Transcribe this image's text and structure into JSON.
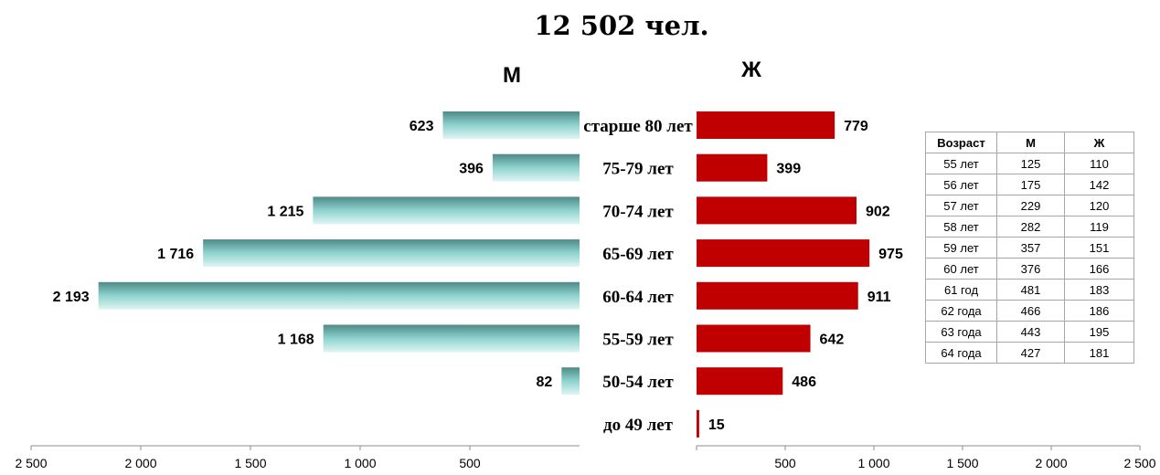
{
  "chart_data": {
    "type": "bar",
    "orientation": "horizontal",
    "title": "12 502 чел.",
    "categories": [
      "старше 80 лет",
      "75-79 лет",
      "70-74 лет",
      "65-69 лет",
      "60-64 лет",
      "55-59 лет",
      "50-54 лет",
      "до 49 лет"
    ],
    "series": [
      {
        "name": "М",
        "values": [
          623,
          396,
          1215,
          1716,
          2193,
          1168,
          82,
          0
        ],
        "labels": [
          "623",
          "396",
          "1 215",
          "1 716",
          "2 193",
          "1 168",
          "82",
          ""
        ],
        "color": "#7fc7c4"
      },
      {
        "name": "Ж",
        "values": [
          779,
          399,
          902,
          975,
          911,
          642,
          486,
          15
        ],
        "labels": [
          "779",
          "399",
          "902",
          "975",
          "911",
          "642",
          "486",
          "15"
        ],
        "color": "#c00000"
      }
    ],
    "xlim": [
      0,
      2500
    ],
    "left_ticks": [
      "2 500",
      "2 000",
      "1 500",
      "1 000",
      "500"
    ],
    "right_ticks": [
      "500",
      "1 000",
      "1 500",
      "2 000",
      "2 500"
    ],
    "grid": false,
    "legend": "none"
  },
  "table": {
    "headers": [
      "Возраст",
      "М",
      "Ж"
    ],
    "rows": [
      [
        "55 лет",
        "125",
        "110"
      ],
      [
        "56 лет",
        "175",
        "142"
      ],
      [
        "57 лет",
        "229",
        "120"
      ],
      [
        "58 лет",
        "282",
        "119"
      ],
      [
        "59 лет",
        "357",
        "151"
      ],
      [
        "60 лет",
        "376",
        "166"
      ],
      [
        "61 год",
        "481",
        "183"
      ],
      [
        "62 года",
        "466",
        "186"
      ],
      [
        "63 года",
        "443",
        "195"
      ],
      [
        "64 года",
        "427",
        "181"
      ]
    ]
  }
}
